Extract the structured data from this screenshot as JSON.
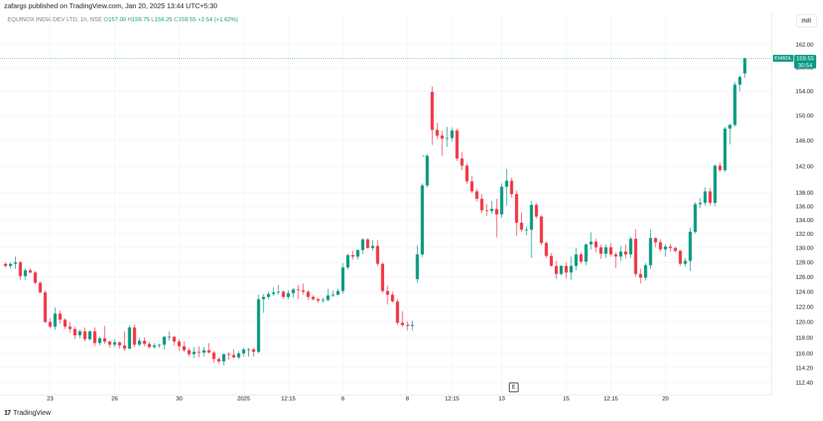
{
  "header": {
    "published": "zafargs published on TradingView.com, Jan 20, 2025 13:44 UTC+5:30",
    "symbol_desc": "EQUINOX INDIA DEV LTD, 1h, NSE",
    "o_label": "O",
    "o_value": "157.00",
    "h_label": "H",
    "h_value": "159.75",
    "l_label": "L",
    "l_value": "156.25",
    "c_label": "C",
    "c_value": "159.55",
    "change": "+2.54 (+1.62%)",
    "currency": "INR"
  },
  "last_price": {
    "symbol": "EMBDL",
    "price": "159.55",
    "countdown": "30:54"
  },
  "event_marker": "E",
  "footer": {
    "logo": "17",
    "brand": "TradingView"
  },
  "colors": {
    "up": "#089981",
    "down": "#f23645",
    "grid": "#f0f3fa",
    "text": "#131722",
    "axis_text": "#787b86"
  },
  "chart_data": {
    "type": "candlestick",
    "y_scale": "log",
    "ylim": [
      111.4,
      165
    ],
    "y_ticks": [
      "162.00",
      "158.00",
      "154.00",
      "150.00",
      "146.00",
      "142.00",
      "138.00",
      "136.00",
      "134.00",
      "132.00",
      "130.00",
      "128.00",
      "126.00",
      "124.00",
      "122.00",
      "120.00",
      "118.00",
      "116.00",
      "114.20",
      "112.40"
    ],
    "x_tick_labels": [
      {
        "label": "23",
        "index": 9
      },
      {
        "label": "26",
        "index": 22
      },
      {
        "label": "30",
        "index": 35
      },
      {
        "label": "2025",
        "index": 48
      },
      {
        "label": "12:15",
        "index": 57
      },
      {
        "label": "6",
        "index": 68
      },
      {
        "label": "8",
        "index": 81
      },
      {
        "label": "12:15",
        "index": 90
      },
      {
        "label": "13",
        "index": 100
      },
      {
        "label": "15",
        "index": 113
      },
      {
        "label": "12:15",
        "index": 122
      },
      {
        "label": "20",
        "index": 133
      }
    ],
    "candles": [
      [
        127.8,
        128,
        127.3,
        127.5
      ],
      [
        127.5,
        128,
        127.2,
        127.8
      ],
      [
        127.8,
        128.8,
        127.1,
        128
      ],
      [
        128,
        128.2,
        125.6,
        126.1
      ],
      [
        126.1,
        127.2,
        125.6,
        126.9
      ],
      [
        126.9,
        127.2,
        126.5,
        126.6
      ],
      [
        126.6,
        126.8,
        125,
        125.2
      ],
      [
        125.2,
        125.4,
        123.8,
        123.9
      ],
      [
        123.9,
        124.2,
        119.9,
        120
      ],
      [
        120,
        120.5,
        119.2,
        119.4
      ],
      [
        119.4,
        121.9,
        119,
        121.1
      ],
      [
        121.1,
        121.5,
        119.8,
        120.3
      ],
      [
        120.3,
        120.5,
        119.1,
        119.4
      ],
      [
        119.4,
        120,
        118.6,
        119.1
      ],
      [
        119.1,
        119.4,
        117.8,
        118.3
      ],
      [
        118.3,
        119,
        117.9,
        118.8
      ],
      [
        118.8,
        119.3,
        117.5,
        117.8
      ],
      [
        117.8,
        118.9,
        117.6,
        118.8
      ],
      [
        118.8,
        119.3,
        116.9,
        117.3
      ],
      [
        117.3,
        118.1,
        117,
        117.9
      ],
      [
        117.9,
        119.5,
        117.2,
        117.5
      ],
      [
        117.5,
        117.6,
        116.7,
        117.1
      ],
      [
        117.1,
        117.8,
        116.8,
        117.4
      ],
      [
        117.4,
        117.5,
        116.6,
        117
      ],
      [
        117,
        118.8,
        116.3,
        116.6
      ],
      [
        116.6,
        119.6,
        116.5,
        119.3
      ],
      [
        119.3,
        119.7,
        116.8,
        117.1
      ],
      [
        117.1,
        118,
        116.9,
        117.6
      ],
      [
        117.6,
        118,
        116.9,
        117.2
      ],
      [
        117.2,
        117.5,
        116.6,
        116.8
      ],
      [
        116.8,
        117.3,
        116.6,
        117
      ],
      [
        117,
        117.2,
        116.7,
        117.1
      ],
      [
        117.1,
        118.2,
        116.5,
        118.1
      ],
      [
        118.1,
        118.8,
        117.6,
        118.1
      ],
      [
        118.1,
        118.2,
        117,
        117.5
      ],
      [
        117.5,
        117.8,
        116.3,
        116.9
      ],
      [
        116.9,
        117.5,
        116.2,
        116.4
      ],
      [
        116.4,
        116.7,
        115.6,
        115.9
      ],
      [
        115.9,
        116.8,
        115.4,
        116.2
      ],
      [
        116.2,
        116.9,
        115.5,
        116.1
      ],
      [
        116.1,
        116.8,
        115.6,
        116.4
      ],
      [
        116.4,
        117.3,
        116,
        116.1
      ],
      [
        116.1,
        116.3,
        114.8,
        115.3
      ],
      [
        115.3,
        115.5,
        114.7,
        115
      ],
      [
        115,
        116,
        114.5,
        115.9
      ],
      [
        115.9,
        116.2,
        115.2,
        115.8
      ],
      [
        115.8,
        116.5,
        115.4,
        115.5
      ],
      [
        115.5,
        116.3,
        115.3,
        116
      ],
      [
        116,
        116.7,
        115.6,
        116.5
      ],
      [
        116.5,
        116.7,
        115.6,
        116.5
      ],
      [
        116.5,
        116.7,
        115.6,
        116.2
      ],
      [
        116.2,
        123.6,
        116,
        123
      ],
      [
        123,
        123.7,
        121.2,
        123.3
      ],
      [
        123.3,
        124,
        123,
        123.7
      ],
      [
        123.7,
        124.6,
        123.4,
        123.9
      ],
      [
        123.9,
        124.9,
        123.6,
        124
      ],
      [
        124,
        124.2,
        123,
        123.3
      ],
      [
        123.3,
        124.2,
        123,
        123.8
      ],
      [
        123.8,
        124.5,
        123.2,
        124.3
      ],
      [
        124.3,
        124.9,
        123,
        124.2
      ],
      [
        124.2,
        125.1,
        123.6,
        124
      ],
      [
        124,
        124.2,
        122.9,
        123.3
      ],
      [
        123.3,
        123.5,
        122.8,
        123
      ],
      [
        123,
        123.2,
        122.5,
        122.8
      ],
      [
        122.8,
        123.2,
        122.5,
        122.9
      ],
      [
        122.9,
        124.4,
        122.7,
        123.5
      ],
      [
        123.5,
        124.1,
        123.3,
        123.6
      ],
      [
        123.6,
        124.4,
        123.5,
        124.1
      ],
      [
        124.1,
        127.9,
        123.7,
        127.3
      ],
      [
        127.3,
        129.2,
        127,
        129
      ],
      [
        129,
        129.6,
        128.4,
        128.8
      ],
      [
        128.8,
        129.8,
        128.4,
        129.7
      ],
      [
        129.7,
        131.4,
        129.1,
        131.2
      ],
      [
        131.2,
        131.4,
        129.9,
        130
      ],
      [
        130,
        131.1,
        129.6,
        130.3
      ],
      [
        130.3,
        131.1,
        127.5,
        127.8
      ],
      [
        127.8,
        128,
        123.8,
        124.1
      ],
      [
        124.1,
        124.8,
        122.3,
        123.6
      ],
      [
        123.6,
        124,
        122.6,
        122.7
      ],
      [
        122.7,
        123,
        119.6,
        119.9
      ],
      [
        119.9,
        121.4,
        119.4,
        119.6
      ],
      [
        119.6,
        120.1,
        118.9,
        119.5
      ],
      [
        119.5,
        120.2,
        118.9,
        119.6
      ],
      [
        125.7,
        130.4,
        125.2,
        129.1
      ],
      [
        129.1,
        139.4,
        128.7,
        139.1
      ],
      [
        139.1,
        143.9,
        138.8,
        143.6
      ],
      [
        153.9,
        154.8,
        145.3,
        147.7
      ],
      [
        147.7,
        148.8,
        146.2,
        146.8
      ],
      [
        146.8,
        147.6,
        143.6,
        146.3
      ],
      [
        146.3,
        148.2,
        145,
        146.4
      ],
      [
        146.4,
        148.1,
        145.9,
        147.6
      ],
      [
        147.6,
        147.9,
        142.8,
        143.2
      ],
      [
        143.2,
        144.2,
        141.4,
        142.1
      ],
      [
        142.1,
        142.4,
        139.3,
        139.7
      ],
      [
        139.7,
        140.5,
        137.9,
        138.2
      ],
      [
        138.2,
        138.6,
        136.7,
        137.1
      ],
      [
        137.1,
        137.8,
        135,
        135.4
      ],
      [
        135.4,
        136.3,
        134.6,
        135.3
      ],
      [
        135.3,
        136.8,
        134.9,
        135.6
      ],
      [
        135.6,
        137.1,
        131.5,
        134.8
      ],
      [
        134.8,
        139.4,
        134.3,
        138.9
      ],
      [
        138.9,
        141.6,
        136.1,
        139.8
      ],
      [
        139.8,
        140.3,
        137.3,
        137.8
      ],
      [
        137.8,
        138.3,
        131.7,
        133.6
      ],
      [
        133.6,
        135.1,
        132.3,
        132.6
      ],
      [
        132.6,
        133.1,
        131.8,
        132.6
      ],
      [
        132.6,
        136.8,
        128.6,
        136.2
      ],
      [
        136.2,
        136.5,
        134.2,
        134.5
      ],
      [
        134.5,
        134.7,
        130.4,
        130.7
      ],
      [
        130.7,
        130.9,
        128.6,
        128.9
      ],
      [
        128.9,
        129.3,
        127.4,
        127.5
      ],
      [
        127.5,
        128.2,
        125.7,
        126.4
      ],
      [
        126.4,
        127.6,
        126.2,
        127.5
      ],
      [
        127.5,
        128,
        125.8,
        126.6
      ],
      [
        126.6,
        128.8,
        125.6,
        127.5
      ],
      [
        127.5,
        130,
        126.9,
        129.1
      ],
      [
        129.1,
        129.4,
        127.8,
        128.1
      ],
      [
        128.1,
        130.6,
        127.6,
        130.5
      ],
      [
        130.5,
        132.2,
        129.8,
        130.9
      ],
      [
        130.9,
        131.3,
        129.4,
        130.1
      ],
      [
        130.1,
        130.5,
        128.5,
        129.2
      ],
      [
        129.2,
        130.5,
        128.6,
        130.1
      ],
      [
        130.1,
        130.7,
        128.8,
        129.1
      ],
      [
        129.1,
        129.4,
        127.2,
        128.8
      ],
      [
        128.8,
        130.3,
        128.2,
        129.5
      ],
      [
        129.5,
        130.5,
        128.5,
        129.1
      ],
      [
        129.1,
        131.6,
        128.6,
        131.3
      ],
      [
        131.3,
        132.7,
        126,
        126.4
      ],
      [
        126.4,
        127.1,
        125.1,
        125.9
      ],
      [
        125.9,
        127.9,
        125.5,
        127.6
      ],
      [
        127.6,
        132.6,
        127.1,
        131.4
      ],
      [
        131.4,
        131.5,
        130.1,
        130.8
      ],
      [
        130.8,
        131.2,
        129.5,
        129.8
      ],
      [
        129.8,
        130.5,
        128.8,
        130.2
      ],
      [
        130.2,
        130.6,
        129.5,
        130
      ],
      [
        130,
        130.2,
        129.4,
        129.6
      ],
      [
        129.6,
        129.8,
        127.5,
        127.8
      ],
      [
        127.8,
        128.6,
        127.4,
        128.2
      ],
      [
        128.2,
        132.9,
        126.8,
        132.3
      ],
      [
        132.3,
        136.6,
        132,
        136.3
      ],
      [
        136.3,
        137.2,
        135.7,
        136.5
      ],
      [
        136.5,
        138.8,
        136.1,
        138.2
      ],
      [
        138.2,
        138.7,
        136.1,
        136.5
      ],
      [
        136.5,
        142.3,
        136,
        142.1
      ],
      [
        142.1,
        142.6,
        141.2,
        141.4
      ],
      [
        141.4,
        148.2,
        141.1,
        147.9
      ],
      [
        147.9,
        148.7,
        145.4,
        148.5
      ],
      [
        148.5,
        155.6,
        148.2,
        155.1
      ],
      [
        155.1,
        156.6,
        154,
        156.4
      ],
      [
        157,
        159.75,
        156.25,
        159.55
      ]
    ],
    "gaps": [
      {
        "after_index": 81,
        "level": 119.6
      },
      {
        "after_index": 84,
        "level": 143.6
      }
    ],
    "last_price_line": 159.55,
    "grid": true
  }
}
